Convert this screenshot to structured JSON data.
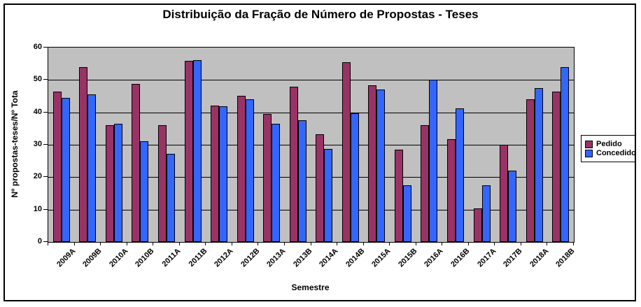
{
  "chart_data": {
    "type": "bar",
    "title": "Distribuição da Fração de Número de Propostas - Teses",
    "xlabel": "Semestre",
    "ylabel": "Nº propostas-teses/Nº Tota",
    "ylim": [
      0,
      60
    ],
    "ytick_step": 10,
    "grid": true,
    "legend_position": "right",
    "plot_background": "#c0c0c0",
    "categories": [
      "2009A",
      "2009B",
      "2010A",
      "2010B",
      "2011A",
      "2011B",
      "2012A",
      "2012B",
      "2013A",
      "2013B",
      "2014A",
      "2014B",
      "2015A",
      "2015B",
      "2016A",
      "2016B",
      "2017A",
      "2017B",
      "2018A",
      "2018B"
    ],
    "series": [
      {
        "name": "Pedido",
        "color": "#993366",
        "values": [
          46.5,
          54,
          36,
          48.8,
          36,
          56,
          42,
          45,
          39.5,
          48,
          33.2,
          55.5,
          48.3,
          28.5,
          36,
          31.8,
          10.3,
          30,
          44,
          46.5
        ]
      },
      {
        "name": "Concedido",
        "color": "#3366ff",
        "values": [
          44.5,
          45.5,
          36.5,
          31,
          27.2,
          56.2,
          41.8,
          44,
          36.5,
          37.5,
          28.6,
          39.8,
          47,
          17.5,
          50,
          41.2,
          17.5,
          22,
          47.5,
          54
        ]
      }
    ]
  }
}
